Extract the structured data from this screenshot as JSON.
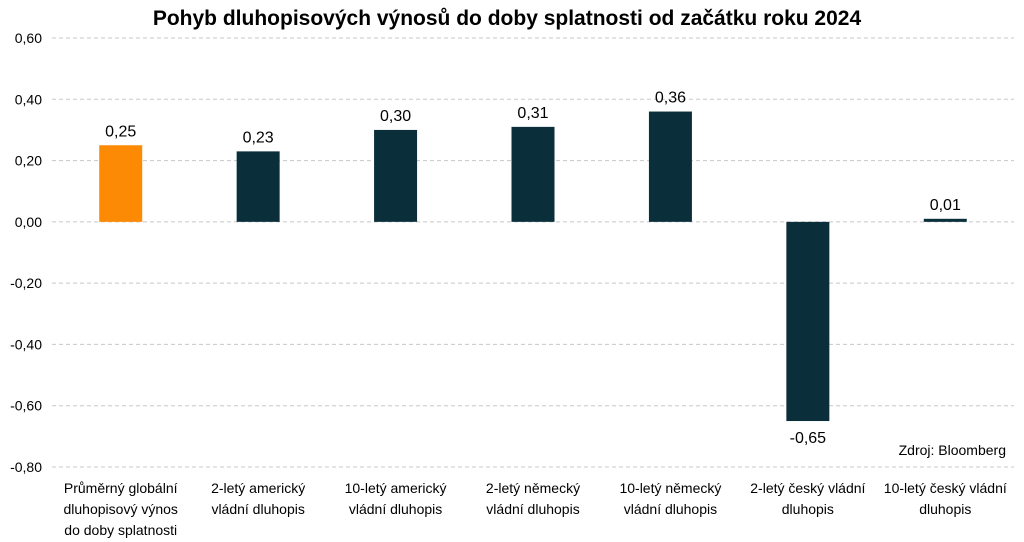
{
  "chart_data": {
    "type": "bar",
    "title": "Pohyb dluhopisových výnosů do doby splatnosti od začátku roku 2024",
    "xlabel": "",
    "ylabel": "",
    "ylim": [
      -0.8,
      0.6
    ],
    "yticks": [
      "0,60",
      "0,40",
      "0,20",
      "0,00",
      "-0,20",
      "-0,40",
      "-0,60",
      "-0,80"
    ],
    "ytick_values": [
      0.6,
      0.4,
      0.2,
      0.0,
      -0.2,
      -0.4,
      -0.6,
      -0.8
    ],
    "grid": true,
    "categories": [
      [
        "Průměrný globální",
        "dluhopisový výnos",
        "do doby splatnosti"
      ],
      [
        "2-letý americký",
        "vládní dluhopis"
      ],
      [
        "10-letý americký",
        "vládní dluhopis"
      ],
      [
        "2-letý německý",
        "vládní dluhopis"
      ],
      [
        "10-letý německý",
        "vládní dluhopis"
      ],
      [
        "2-letý český vládní",
        "dluhopis"
      ],
      [
        "10-letý český vládní",
        "dluhopis"
      ]
    ],
    "values": [
      0.25,
      0.23,
      0.3,
      0.31,
      0.36,
      -0.65,
      0.01
    ],
    "value_labels": [
      "0,25",
      "0,23",
      "0,30",
      "0,31",
      "0,36",
      "-0,65",
      "0,01"
    ],
    "colors": [
      "#fc8a04",
      "#0b2f3a",
      "#0b2f3a",
      "#0b2f3a",
      "#0b2f3a",
      "#0b2f3a",
      "#0b2f3a"
    ],
    "source": "Zdroj: Bloomberg"
  }
}
